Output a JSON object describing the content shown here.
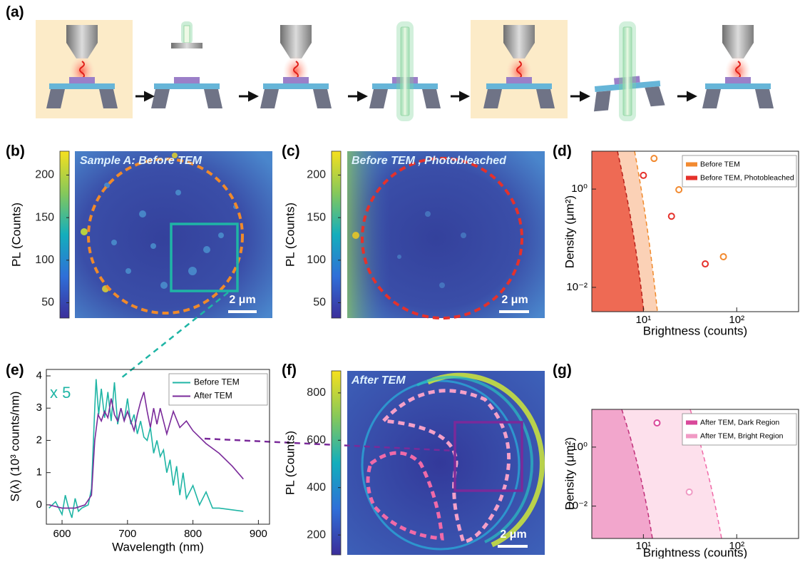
{
  "panel_labels": [
    "(a)",
    "(b)",
    "(c)",
    "(d)",
    "(e)",
    "(f)",
    "(g)"
  ],
  "chart_data": [
    {
      "type": "image",
      "title": "Sample A: Before TEM",
      "colorbar_label": "PL (Counts)",
      "clim": [
        32,
        228
      ],
      "cticks": [
        50,
        100,
        150,
        200
      ],
      "scale_bar": "2 μm"
    },
    {
      "type": "image",
      "title": "Before TEM , Photobleached",
      "colorbar_label": "PL (Counts)",
      "clim": [
        32,
        228
      ],
      "cticks": [
        50,
        100,
        150,
        200
      ],
      "scale_bar": "2 μm"
    },
    {
      "type": "scatter",
      "xlabel": "Brightness (counts)",
      "ylabel": "Density (μm²)",
      "xscale": "log",
      "yscale": "log",
      "xlim": [
        2.8,
        460
      ],
      "ylim": [
        0.0032,
        5.9
      ],
      "xticks": [
        {
          "value": 10,
          "label": "10¹"
        },
        {
          "value": 100,
          "label": "10²"
        }
      ],
      "yticks": [
        {
          "value": 0.01,
          "label": "10⁻²"
        },
        {
          "value": 1,
          "label": "10⁰"
        }
      ],
      "legend": "upper right",
      "series": [
        {
          "name": "Before TEM",
          "color": "#f28a30",
          "x": [
            13,
            24,
            72
          ],
          "values": [
            4.2,
            0.97,
            0.042
          ]
        },
        {
          "name": "Before TEM, Photobleached",
          "color": "#e5312b",
          "x": [
            10,
            20,
            46
          ],
          "values": [
            1.9,
            0.28,
            0.03
          ]
        }
      ]
    },
    {
      "type": "line",
      "xlabel": "Wavelength (nm)",
      "ylabel": "S(λ) (10³ counts/nm)",
      "xlim": [
        576,
        917
      ],
      "ylim": [
        -0.6,
        4.2
      ],
      "xticks": [
        600,
        700,
        800,
        900
      ],
      "yticks": [
        0,
        1,
        2,
        3,
        4
      ],
      "annotation": "x 5",
      "legend": "upper right",
      "series": [
        {
          "name": "Before TEM",
          "color": "#1fb5a5",
          "x": [
            580,
            590,
            600,
            605,
            610,
            615,
            620,
            625,
            630,
            640,
            645,
            650,
            652,
            656,
            660,
            665,
            670,
            675,
            680,
            685,
            690,
            695,
            700,
            705,
            710,
            715,
            720,
            725,
            730,
            735,
            740,
            745,
            750,
            755,
            760,
            765,
            770,
            775,
            780,
            785,
            790,
            800,
            810,
            820,
            830,
            840,
            877
          ],
          "values": [
            -0.1,
            0.1,
            -0.3,
            0.3,
            -0.1,
            -0.4,
            0.2,
            -0.2,
            -0.1,
            0,
            0.5,
            3.0,
            3.9,
            2.8,
            3.6,
            2.7,
            3.5,
            2.6,
            3.8,
            2.5,
            3.0,
            2.6,
            3.3,
            2.5,
            2.8,
            2.2,
            2.6,
            2.1,
            2.0,
            2.4,
            1.6,
            2.0,
            1.5,
            1.7,
            1.0,
            1.4,
            0.6,
            1.2,
            0.3,
            1.0,
            0.2,
            0.6,
            0.0,
            0.4,
            -0.1,
            -0.1,
            -0.2
          ]
        },
        {
          "name": "After TEM",
          "color": "#7a2a9a",
          "x": [
            580,
            600,
            620,
            635,
            645,
            650,
            655,
            660,
            665,
            670,
            675,
            680,
            685,
            690,
            695,
            700,
            705,
            710,
            715,
            720,
            725,
            730,
            735,
            740,
            745,
            750,
            760,
            770,
            780,
            790,
            800,
            820,
            840,
            860,
            877
          ],
          "values": [
            0,
            -0.1,
            -0.1,
            0,
            0.3,
            2.0,
            2.8,
            2.6,
            2.9,
            2.7,
            3.3,
            2.8,
            2.6,
            3.0,
            2.6,
            2.9,
            2.6,
            2.3,
            2.8,
            3.2,
            3.5,
            2.9,
            2.4,
            3.0,
            2.5,
            3.0,
            2.2,
            2.9,
            2.4,
            2.6,
            2.3,
            1.9,
            1.6,
            1.2,
            0.8
          ]
        }
      ]
    },
    {
      "type": "image",
      "title": "After TEM",
      "colorbar_label": "PL (Counts)",
      "clim": [
        116,
        893
      ],
      "cticks": [
        200,
        400,
        600,
        800
      ],
      "scale_bar": "2 μm"
    },
    {
      "type": "scatter",
      "xlabel": "Brightness (counts)",
      "ylabel": "Density (μm²)",
      "xscale": "log",
      "yscale": "log",
      "xlim": [
        2.8,
        460
      ],
      "ylim": [
        0.0008,
        19
      ],
      "xticks": [
        {
          "value": 10,
          "label": "10¹"
        },
        {
          "value": 100,
          "label": "10²"
        }
      ],
      "yticks": [
        {
          "value": 0.01,
          "label": "10⁻²"
        },
        {
          "value": 1,
          "label": "10⁰"
        }
      ],
      "legend": "upper right",
      "series": [
        {
          "name": "After TEM, Dark Region",
          "color": "#d9489a",
          "x": [
            14
          ],
          "values": [
            6.6
          ]
        },
        {
          "name": "After TEM, Bright Region",
          "color": "#f09ac4",
          "x": [
            31
          ],
          "values": [
            0.03
          ]
        }
      ]
    }
  ]
}
